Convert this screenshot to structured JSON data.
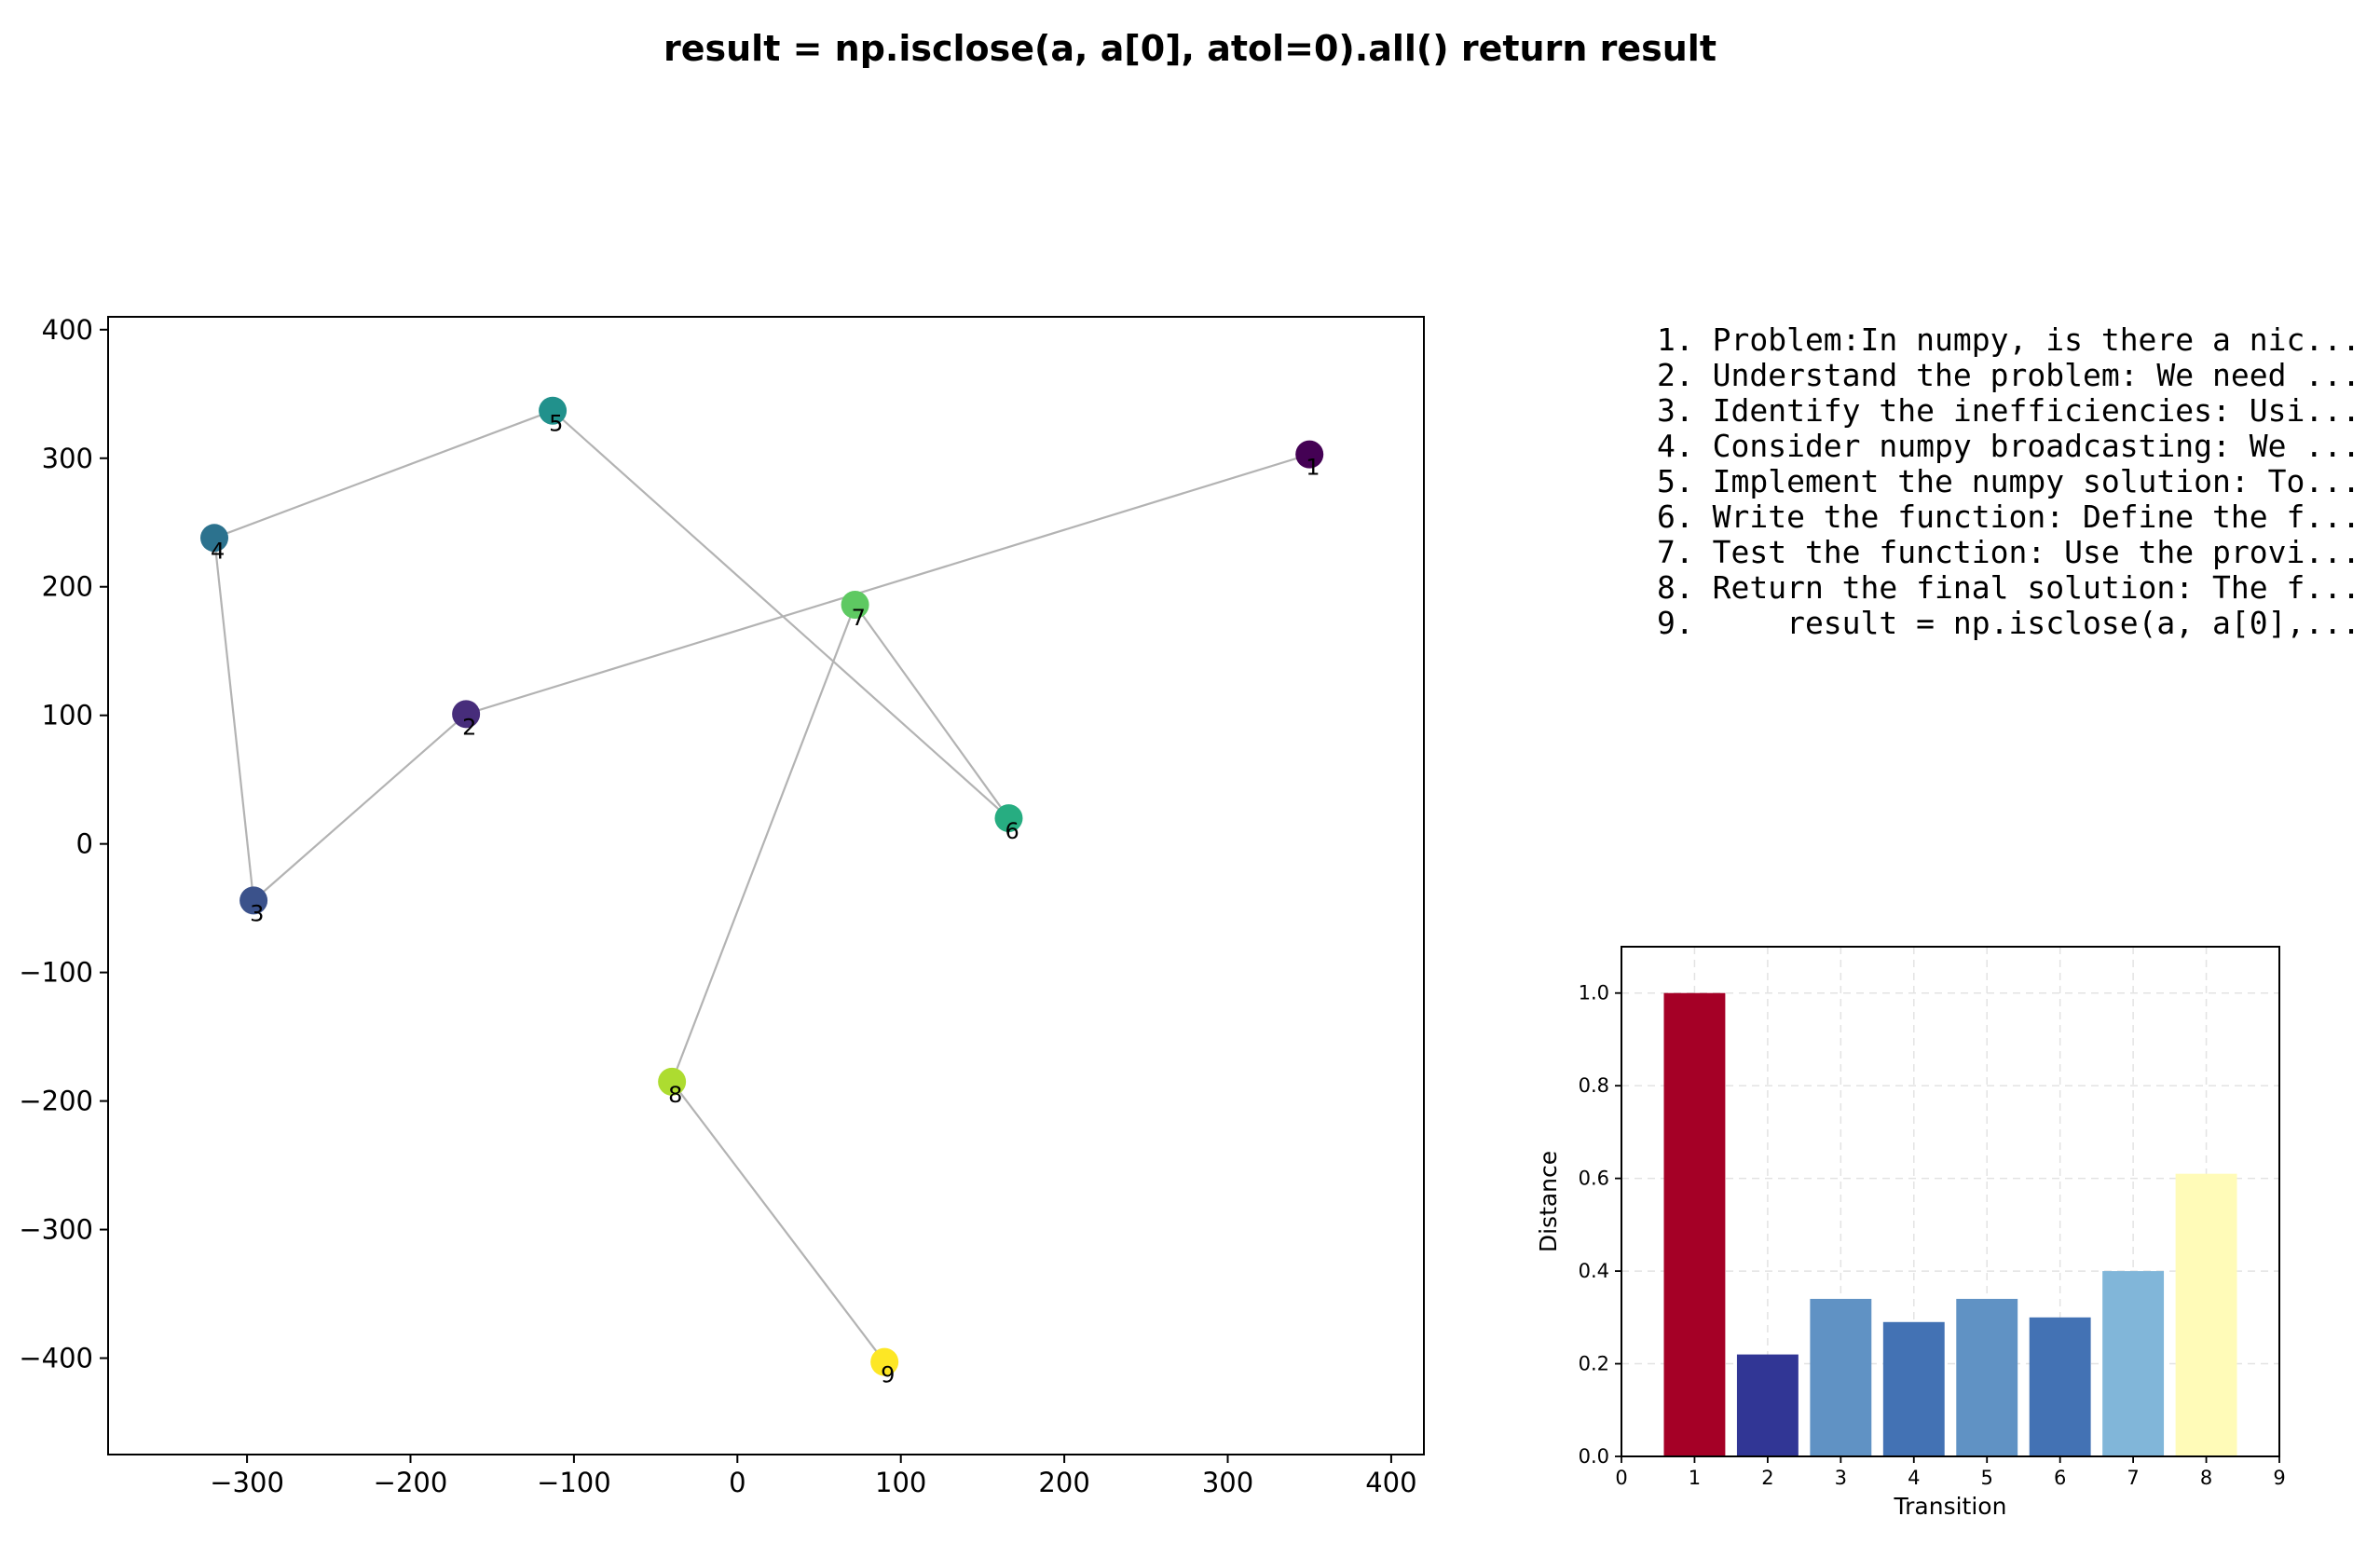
{
  "figure": {
    "title": "result = np.isclose(a, a[0], atol=0).all()    return result"
  },
  "steps": [
    "1. Problem:In numpy, is there a nic...",
    "2. Understand the problem: We need ...",
    "3. Identify the inefficiencies: Usi...",
    "4. Consider numpy broadcasting: We ...",
    "5. Implement the numpy solution: To...",
    "6. Write the function: Define the f...",
    "7. Test the function: Use the provi...",
    "8. Return the final solution: The f...",
    "9.     result = np.isclose(a, a[0],..."
  ],
  "chart_data": [
    {
      "type": "scatter",
      "title": "",
      "xlabel": "",
      "ylabel": "",
      "xlim": [
        -385,
        420
      ],
      "ylim": [
        -475,
        410
      ],
      "xticks": [
        -300,
        -200,
        -100,
        0,
        100,
        200,
        300,
        400
      ],
      "yticks": [
        -400,
        -300,
        -200,
        -100,
        0,
        100,
        200,
        300,
        400
      ],
      "xtick_labels": [
        "−300",
        "−200",
        "−100",
        "0",
        "100",
        "200",
        "300",
        "400"
      ],
      "ytick_labels": [
        "−400",
        "−300",
        "−200",
        "−100",
        "0",
        "100",
        "200",
        "300",
        "400"
      ],
      "grid": false,
      "connected": true,
      "points": [
        {
          "label": "1",
          "x": 350,
          "y": 303,
          "color": "#440154"
        },
        {
          "label": "2",
          "x": -166,
          "y": 101,
          "color": "#472d7b"
        },
        {
          "label": "3",
          "x": -296,
          "y": -44,
          "color": "#3b528b"
        },
        {
          "label": "4",
          "x": -320,
          "y": 238,
          "color": "#2c728e"
        },
        {
          "label": "5",
          "x": -113,
          "y": 337,
          "color": "#21918c"
        },
        {
          "label": "6",
          "x": 166,
          "y": 20,
          "color": "#27ad81"
        },
        {
          "label": "7",
          "x": 72,
          "y": 186,
          "color": "#5ec962"
        },
        {
          "label": "8",
          "x": -40,
          "y": -185,
          "color": "#addc30"
        },
        {
          "label": "9",
          "x": 90,
          "y": -403,
          "color": "#fde725"
        }
      ]
    },
    {
      "type": "bar",
      "title": "",
      "xlabel": "Transition",
      "ylabel": "Distance",
      "xlim": [
        0,
        9
      ],
      "ylim": [
        0,
        1.1
      ],
      "xticks": [
        0,
        1,
        2,
        3,
        4,
        5,
        6,
        7,
        8,
        9
      ],
      "yticks": [
        0.0,
        0.2,
        0.4,
        0.6,
        0.8,
        1.0
      ],
      "ytick_labels": [
        "0.0",
        "0.2",
        "0.4",
        "0.6",
        "0.8",
        "1.0"
      ],
      "grid": true,
      "categories": [
        1,
        2,
        3,
        4,
        5,
        6,
        7,
        8
      ],
      "values": [
        1.0,
        0.22,
        0.34,
        0.29,
        0.34,
        0.3,
        0.4,
        0.61
      ],
      "colors": [
        "#a50026",
        "#313695",
        "#6092c4",
        "#4372b4",
        "#6092c4",
        "#4372b4",
        "#81b6d9",
        "#fffbb8"
      ]
    }
  ]
}
